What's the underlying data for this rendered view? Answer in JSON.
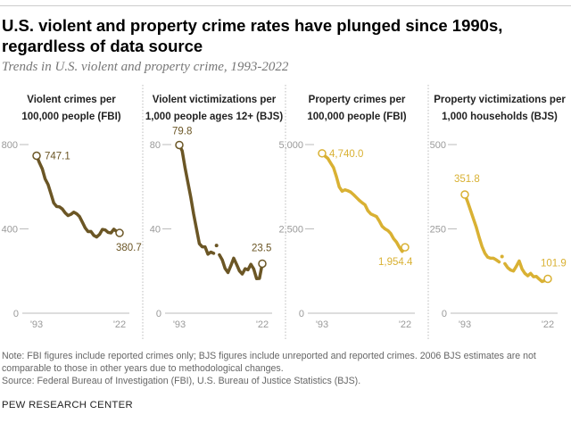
{
  "title": "U.S. violent and property crime rates have plunged since 1990s, regardless of data source",
  "subtitle": "Trends in U.S. violent and property crime, 1993-2022",
  "notes": [
    "Note: FBI figures include reported crimes only; BJS figures include unreported and reported crimes. 2006 BJS estimates are not comparable to those in other years due to methodological changes.",
    "Source: Federal Bureau of Investigation (FBI), U.S. Bureau of Justice Statistics (BJS)."
  ],
  "brand": "PEW RESEARCH CENTER",
  "colors": {
    "violent": "#6b5625",
    "property": "#d9b133",
    "axis": "#9a9a9a"
  },
  "chart_data": [
    {
      "type": "line",
      "title_lines": [
        "Violent crimes per",
        "100,000 people (FBI)"
      ],
      "x": [
        1993,
        1994,
        1995,
        1996,
        1997,
        1998,
        1999,
        2000,
        2001,
        2002,
        2003,
        2004,
        2005,
        2006,
        2007,
        2008,
        2009,
        2010,
        2011,
        2012,
        2013,
        2014,
        2015,
        2016,
        2017,
        2018,
        2019,
        2020,
        2021,
        2022
      ],
      "values": [
        747.1,
        713.6,
        684.5,
        636.6,
        611.0,
        567.6,
        523.0,
        506.5,
        504.5,
        494.4,
        475.8,
        463.2,
        469.0,
        479.3,
        471.8,
        458.6,
        431.9,
        404.5,
        387.1,
        387.8,
        369.1,
        361.6,
        373.7,
        397.5,
        394.9,
        383.4,
        380.8,
        398.5,
        387.8,
        380.7
      ],
      "yticks": [
        "800",
        "400",
        "0"
      ],
      "ytick_values": [
        800,
        400,
        0
      ],
      "xtick_labels": [
        "'93",
        "'22"
      ],
      "ylim": [
        0,
        800
      ],
      "start_label": "747.1",
      "end_label": "380.7",
      "color": "violent"
    },
    {
      "type": "line",
      "title_lines": [
        "Violent victimizations per",
        "1,000 people ages 12+ (BJS)"
      ],
      "x": [
        1993,
        1994,
        1995,
        1996,
        1997,
        1998,
        1999,
        2000,
        2001,
        2002,
        2003,
        2004,
        2005,
        2006,
        2007,
        2008,
        2009,
        2010,
        2011,
        2012,
        2013,
        2014,
        2015,
        2016,
        2017,
        2018,
        2019,
        2020,
        2021,
        2022
      ],
      "values": [
        79.8,
        77.0,
        69.0,
        62.0,
        55.0,
        47.0,
        40.0,
        33.0,
        31.5,
        31.5,
        28.0,
        29.0,
        28.4,
        32.1,
        27.7,
        25.3,
        21.2,
        19.3,
        22.5,
        26.1,
        23.2,
        20.1,
        18.6,
        21.1,
        20.6,
        23.2,
        21.0,
        16.4,
        16.5,
        23.5
      ],
      "isolated_years": [
        2006
      ],
      "yticks": [
        "80",
        "40",
        "0"
      ],
      "ytick_values": [
        80,
        40,
        0
      ],
      "xtick_labels": [
        "'93",
        "'22"
      ],
      "ylim": [
        0,
        80
      ],
      "start_label": "79.8",
      "end_label": "23.5",
      "color": "violent"
    },
    {
      "type": "line",
      "title_lines": [
        "Property crimes per",
        "100,000 people (FBI)"
      ],
      "x": [
        1993,
        1994,
        1995,
        1996,
        1997,
        1998,
        1999,
        2000,
        2001,
        2002,
        2003,
        2004,
        2005,
        2006,
        2007,
        2008,
        2009,
        2010,
        2011,
        2012,
        2013,
        2014,
        2015,
        2016,
        2017,
        2018,
        2019,
        2020,
        2021,
        2022
      ],
      "values": [
        4740.0,
        4660,
        4591,
        4451,
        4316,
        4052,
        3743,
        3618,
        3658,
        3631,
        3591,
        3515,
        3431,
        3347,
        3276,
        3214,
        3041,
        2946,
        2905,
        2868,
        2733,
        2574,
        2500,
        2451,
        2362,
        2210,
        2110,
        1958,
        1832,
        1954.4
      ],
      "yticks": [
        "5,000",
        "2,500",
        "0"
      ],
      "ytick_values": [
        5000,
        2500,
        0
      ],
      "xtick_labels": [
        "'93",
        "'22"
      ],
      "ylim": [
        0,
        5000
      ],
      "start_label": "4,740.0",
      "end_label": "1,954.4",
      "color": "property"
    },
    {
      "type": "line",
      "title_lines": [
        "Property victimizations per",
        "1,000 households (BJS)"
      ],
      "x": [
        1993,
        1994,
        1995,
        1996,
        1997,
        1998,
        1999,
        2000,
        2001,
        2002,
        2003,
        2004,
        2005,
        2006,
        2007,
        2008,
        2009,
        2010,
        2011,
        2012,
        2013,
        2014,
        2015,
        2016,
        2017,
        2018,
        2019,
        2020,
        2021,
        2022
      ],
      "values": [
        351.8,
        330,
        305,
        280,
        255,
        225,
        198,
        178,
        166,
        163,
        163,
        158,
        152,
        168,
        147,
        135,
        128,
        125,
        139,
        155,
        131,
        118,
        111,
        118,
        108,
        109,
        101,
        94,
        97,
        101.9
      ],
      "isolated_years": [
        2006
      ],
      "yticks": [
        "500",
        "250",
        "0"
      ],
      "ytick_values": [
        500,
        250,
        0
      ],
      "xtick_labels": [
        "'93",
        "'22"
      ],
      "ylim": [
        0,
        500
      ],
      "start_label": "351.8",
      "end_label": "101.9",
      "color": "property"
    }
  ]
}
